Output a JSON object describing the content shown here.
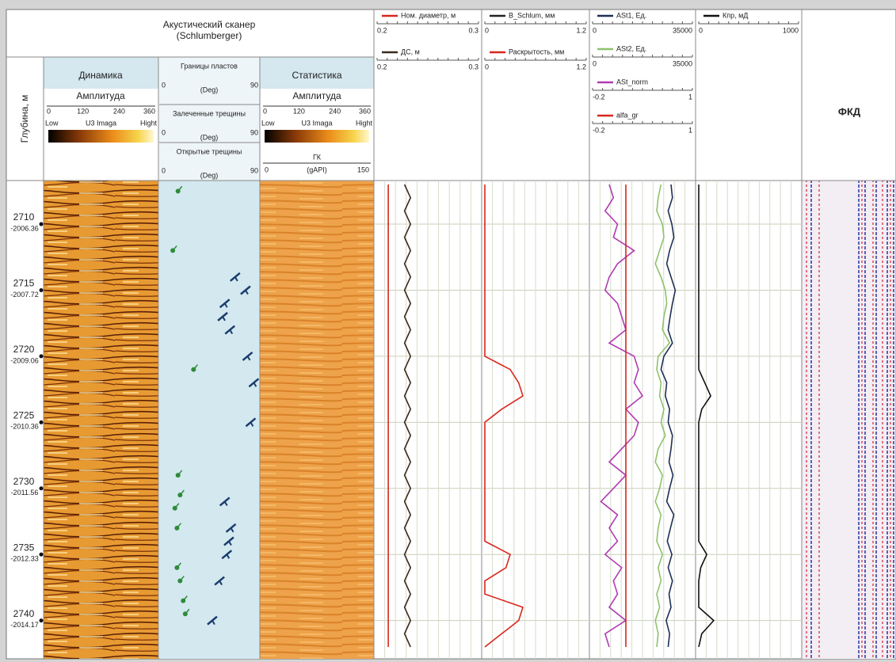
{
  "header": {
    "group_line1": "Акустический сканер",
    "group_line2": "(Schlumberger)"
  },
  "depth_track": {
    "title": "Глубина, м",
    "ylim": [
      2706.7,
      2742.9
    ],
    "ticks": [
      {
        "value": 2710,
        "label": "2710",
        "tvd": "-2006.36"
      },
      {
        "value": 2715,
        "label": "2715",
        "tvd": "-2007.72"
      },
      {
        "value": 2720,
        "label": "2720",
        "tvd": "-2009.06"
      },
      {
        "value": 2725,
        "label": "2725",
        "tvd": "-2010.36"
      },
      {
        "value": 2730,
        "label": "2730",
        "tvd": "-2011.56"
      },
      {
        "value": 2735,
        "label": "2735",
        "tvd": "-2012.33"
      },
      {
        "value": 2740,
        "label": "2740",
        "tvd": "-2014.17"
      }
    ]
  },
  "image_dynamic": {
    "title": "Динамика",
    "subtitle": "Амплитуда",
    "scale_ticks": [
      0,
      120,
      240,
      360
    ],
    "low": "Low",
    "name": "U3 Imaga",
    "high": "Hight"
  },
  "image_static": {
    "title": "Статистика",
    "subtitle": "Амплитуда",
    "scale_ticks": [
      0,
      120,
      240,
      360
    ],
    "low": "Low",
    "name": "U3 Imaga",
    "high": "Hight",
    "gk": {
      "name": "ГК",
      "unit": "(gAPI)",
      "xlim": [
        0,
        150
      ]
    }
  },
  "dip_track": {
    "panels": [
      {
        "title": "Границы пластов",
        "unit": "(Deg)",
        "xlim": [
          0,
          90
        ]
      },
      {
        "title": "Залеченные трещины",
        "unit": "(Deg)",
        "xlim": [
          0,
          90
        ]
      },
      {
        "title": "Открытые трещины",
        "unit": "(Deg)",
        "xlim": [
          0,
          90
        ]
      }
    ],
    "bed_boundaries": {
      "depth": [
        2707.5,
        2712,
        2721,
        2729,
        2730.5,
        2731.5,
        2733,
        2736,
        2737,
        2738.5,
        2739.5
      ],
      "dip": [
        15,
        10,
        30,
        15,
        17,
        12,
        14,
        14,
        17,
        20,
        22
      ]
    },
    "open_fractures": {
      "depth": [
        2714,
        2715,
        2716,
        2717,
        2718,
        2720,
        2722,
        2725,
        2731,
        2733,
        2734,
        2735,
        2737,
        2740
      ],
      "dip": [
        70,
        80,
        60,
        58,
        65,
        82,
        88,
        85,
        60,
        66,
        64,
        62,
        55,
        48
      ]
    }
  },
  "depths": [
    2707,
    2708,
    2709,
    2710,
    2711,
    2712,
    2713,
    2714,
    2715,
    2716,
    2717,
    2718,
    2719,
    2720,
    2721,
    2722,
    2723,
    2724,
    2725,
    2726,
    2727,
    2728,
    2729,
    2730,
    2731,
    2732,
    2733,
    2734,
    2735,
    2736,
    2737,
    2738,
    2739,
    2740,
    2741,
    2742
  ],
  "tracks": [
    {
      "curves": [
        {
          "name": "Ном. диаметр, м",
          "color": "#d9261c",
          "xlim": [
            0.2,
            0.3
          ],
          "values": [
            0.211,
            0.211,
            0.211,
            0.211,
            0.211,
            0.211,
            0.211,
            0.211,
            0.211,
            0.211,
            0.211,
            0.211,
            0.211,
            0.211,
            0.211,
            0.211,
            0.211,
            0.211,
            0.211,
            0.211,
            0.211,
            0.211,
            0.211,
            0.211,
            0.211,
            0.211,
            0.211,
            0.211,
            0.211,
            0.211,
            0.211,
            0.211,
            0.211,
            0.211,
            0.211,
            0.211
          ]
        },
        {
          "name": "ДС, м",
          "color": "#3a2a1a",
          "xlim": [
            0.2,
            0.3
          ],
          "values": [
            0.227,
            0.233,
            0.227,
            0.233,
            0.227,
            0.233,
            0.227,
            0.233,
            0.227,
            0.233,
            0.227,
            0.233,
            0.227,
            0.233,
            0.227,
            0.233,
            0.227,
            0.233,
            0.227,
            0.233,
            0.227,
            0.233,
            0.227,
            0.233,
            0.227,
            0.233,
            0.227,
            0.233,
            0.227,
            0.233,
            0.227,
            0.233,
            0.227,
            0.233,
            0.227,
            0.233
          ]
        }
      ]
    },
    {
      "curves": [
        {
          "name": "B_Schlum, мм",
          "color": "#222222",
          "xlim": [
            0,
            1.2
          ],
          "values": []
        },
        {
          "name": "Раскрытость, мм",
          "color": "#d9261c",
          "xlim": [
            0,
            1.2
          ],
          "values": [
            0,
            0,
            0,
            0,
            0,
            0,
            0,
            0,
            0,
            0,
            0,
            0,
            0,
            0,
            0.3,
            0.4,
            0.45,
            0.2,
            0,
            0,
            0,
            0,
            0,
            0,
            0,
            0,
            0,
            0,
            0.3,
            0.25,
            0,
            0,
            0.45,
            0.4,
            0.2,
            0
          ]
        }
      ]
    },
    {
      "curves": [
        {
          "name": "ASt1, Ед.",
          "color": "#1f2f55",
          "xlim": [
            0,
            35000
          ],
          "values": [
            27500,
            28000,
            26500,
            27800,
            28500,
            27000,
            26000,
            27500,
            29000,
            28000,
            27200,
            26500,
            28000,
            25000,
            24000,
            26000,
            25500,
            27000,
            26500,
            28000,
            27500,
            26800,
            28200,
            27000,
            26000,
            28500,
            27300,
            26200,
            27800,
            26500,
            28000,
            26800,
            27500,
            25800,
            27000,
            26500
          ]
        },
        {
          "name": "ASt2, Ед.",
          "color": "#8dc26b",
          "xlim": [
            0,
            35000
          ],
          "values": [
            24000,
            23000,
            22500,
            24500,
            25000,
            23500,
            22000,
            24000,
            25500,
            26000,
            25000,
            24500,
            27000,
            23000,
            22500,
            24000,
            23500,
            25000,
            24000,
            25500,
            23000,
            22000,
            24500,
            23500,
            22000,
            24000,
            23000,
            22500,
            24500,
            23000,
            24000,
            22500,
            23500,
            22000,
            23000,
            22500
          ]
        },
        {
          "name": "ASt_norm",
          "color": "#b03cb0",
          "xlim": [
            -0.2,
            1
          ],
          "values": [
            0.0,
            0.05,
            -0.05,
            0.1,
            0.05,
            0.3,
            0.1,
            0.0,
            -0.05,
            0.1,
            0.15,
            0.2,
            0.0,
            0.3,
            0.35,
            0.3,
            0.4,
            0.2,
            0.35,
            0.3,
            0.15,
            0.0,
            0.2,
            0.05,
            -0.1,
            0.1,
            0.0,
            0.1,
            -0.05,
            0.15,
            0.05,
            0.1,
            0.0,
            0.2,
            -0.05,
            0.0
          ]
        },
        {
          "name": "alfa_gr",
          "color": "#d9261c",
          "xlim": [
            -0.2,
            1
          ],
          "values": [
            0.2,
            0.2,
            0.2,
            0.2,
            0.2,
            0.2,
            0.2,
            0.2,
            0.2,
            0.2,
            0.2,
            0.2,
            0.2,
            0.2,
            0.2,
            0.2,
            0.2,
            0.2,
            0.2,
            0.2,
            0.2,
            0.2,
            0.2,
            0.2,
            0.2,
            0.2,
            0.2,
            0.2,
            0.2,
            0.2,
            0.2,
            0.2,
            0.2,
            0.2,
            0.2,
            0.2
          ]
        }
      ]
    },
    {
      "curves": [
        {
          "name": "Кпр, мД",
          "color": "#111111",
          "xlim": [
            0,
            1000
          ],
          "values": [
            0,
            0,
            0,
            0,
            0,
            0,
            0,
            0,
            0,
            0,
            0,
            0,
            0,
            0,
            0,
            60,
            120,
            30,
            0,
            0,
            0,
            0,
            0,
            0,
            0,
            0,
            0,
            0,
            80,
            20,
            0,
            0,
            0,
            150,
            30,
            0
          ]
        }
      ]
    }
  ],
  "fkd": {
    "title": "ФКД"
  }
}
